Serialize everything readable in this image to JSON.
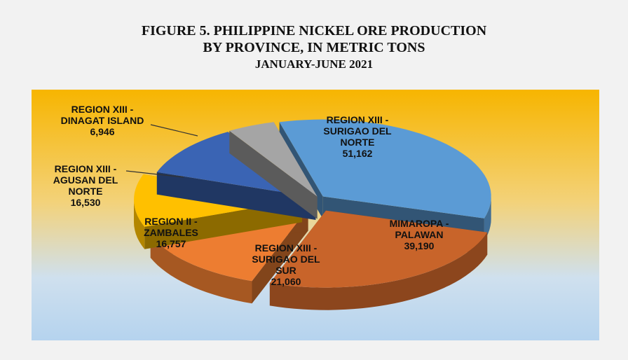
{
  "chart_data": {
    "type": "pie",
    "title": [
      "FIGURE 5.  PHILIPPINE  NICKEL  ORE PRODUCTION",
      "BY PROVINCE, IN METRIC  TONS"
    ],
    "subtitle": "JANUARY-JUNE 2021",
    "categories": [
      "REGION XIII - SURIGAO DEL NORTE",
      "MIMAROPA - PALAWAN",
      "REGION XIII - SURIGAO DEL SUR",
      "REGION II - ZAMBALES",
      "REGION XIII - AGUSAN DEL NORTE",
      "REGION XIII - DINAGAT ISLAND"
    ],
    "values": [
      51162,
      39190,
      21060,
      16757,
      16530,
      6946
    ],
    "value_labels": [
      "51,162",
      "39,190",
      "21,060",
      "16,757",
      "16,530",
      "6,946"
    ],
    "colors": [
      "#5b9bd5",
      "#c8642a",
      "#ed7d31",
      "#ffc000",
      "#3a64b4",
      "#a5a5a5"
    ]
  }
}
